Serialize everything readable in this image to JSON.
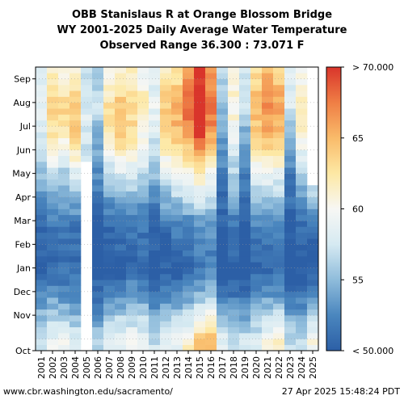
{
  "chart_data": {
    "type": "heatmap",
    "title": [
      "OBB Stanislaus R at Orange Blossom Bridge",
      "WY 2001-2025 Daily Average Water Temperature",
      "Observed Range 36.300 : 73.071 F"
    ],
    "x_categories": [
      "2001",
      "2002",
      "2003",
      "2004",
      "2005",
      "2006",
      "2007",
      "2008",
      "2009",
      "2010",
      "2011",
      "2012",
      "2013",
      "2014",
      "2015",
      "2016",
      "2017",
      "2018",
      "2019",
      "2020",
      "2021",
      "2022",
      "2023",
      "2024",
      "2025"
    ],
    "y_categories": [
      "Oct",
      "Nov",
      "Dec",
      "Jan",
      "Feb",
      "Mar",
      "Apr",
      "May",
      "Jun",
      "Jul",
      "Aug",
      "Sep"
    ],
    "colorbar": {
      "ticks": [
        "< 50.000",
        "55",
        "60",
        "65",
        "> 70.000"
      ],
      "range": [
        50,
        70
      ],
      "colors": [
        "#2c5fa6",
        "#4a86be",
        "#8fbcdb",
        "#d6eaf2",
        "#f7f7f4",
        "#fde8a4",
        "#f9bb6a",
        "#ef7e45",
        "#d9352b"
      ]
    },
    "monthly_means_by_year": [
      [
        58,
        55,
        52,
        50,
        50,
        51,
        53,
        55,
        57,
        58,
        59,
        58
      ],
      [
        59,
        56,
        53,
        51,
        51,
        52,
        54,
        57,
        61,
        63,
        64,
        62
      ],
      [
        60,
        56,
        52,
        51,
        51,
        52,
        54,
        56,
        60,
        63,
        63,
        61
      ],
      [
        58,
        55,
        52,
        51,
        51,
        52,
        55,
        58,
        62,
        64,
        64,
        61
      ],
      [
        null,
        null,
        null,
        null,
        null,
        null,
        null,
        null,
        57,
        58,
        58,
        57
      ],
      [
        56,
        53,
        51,
        49,
        49,
        50,
        52,
        53,
        54,
        55,
        57,
        56
      ],
      [
        58,
        55,
        52,
        50,
        50,
        51,
        54,
        57,
        60,
        62,
        63,
        60
      ],
      [
        59,
        56,
        52,
        50,
        51,
        52,
        55,
        58,
        62,
        64,
        64,
        61
      ],
      [
        60,
        56,
        53,
        51,
        51,
        52,
        55,
        58,
        61,
        63,
        63,
        61
      ],
      [
        59,
        56,
        53,
        51,
        51,
        52,
        54,
        57,
        59,
        61,
        62,
        60
      ],
      [
        57,
        54,
        51,
        50,
        50,
        51,
        53,
        55,
        57,
        58,
        59,
        58
      ],
      [
        58,
        55,
        52,
        50,
        50,
        52,
        55,
        58,
        62,
        64,
        64,
        62
      ],
      [
        59,
        56,
        52,
        50,
        51,
        53,
        56,
        59,
        63,
        65,
        65,
        63
      ],
      [
        61,
        57,
        53,
        51,
        51,
        53,
        57,
        60,
        64,
        67,
        68,
        66
      ],
      [
        64,
        59,
        54,
        52,
        52,
        54,
        58,
        62,
        67,
        71,
        72,
        70
      ],
      [
        65,
        60,
        55,
        52,
        52,
        54,
        57,
        60,
        64,
        67,
        68,
        66
      ],
      [
        58,
        55,
        51,
        49,
        49,
        50,
        51,
        52,
        53,
        54,
        56,
        56
      ],
      [
        57,
        54,
        51,
        50,
        51,
        52,
        54,
        56,
        58,
        60,
        61,
        60
      ],
      [
        57,
        54,
        51,
        49,
        49,
        50,
        51,
        52,
        53,
        55,
        57,
        57
      ],
      [
        58,
        55,
        52,
        51,
        51,
        53,
        56,
        59,
        62,
        64,
        65,
        63
      ],
      [
        60,
        56,
        53,
        51,
        51,
        53,
        56,
        59,
        63,
        66,
        67,
        65
      ],
      [
        61,
        57,
        53,
        51,
        51,
        53,
        56,
        59,
        63,
        65,
        66,
        64
      ],
      [
        57,
        54,
        51,
        49,
        49,
        50,
        51,
        52,
        54,
        56,
        58,
        58
      ],
      [
        57,
        54,
        51,
        50,
        50,
        51,
        53,
        56,
        59,
        61,
        62,
        60
      ],
      [
        60,
        56,
        52,
        50,
        50,
        52,
        56,
        null,
        null,
        null,
        null,
        null
      ]
    ]
  },
  "footer": {
    "url": "www.cbr.washington.edu/sacramento/",
    "timestamp": "27 Apr 2025 15:48:24 PDT"
  }
}
